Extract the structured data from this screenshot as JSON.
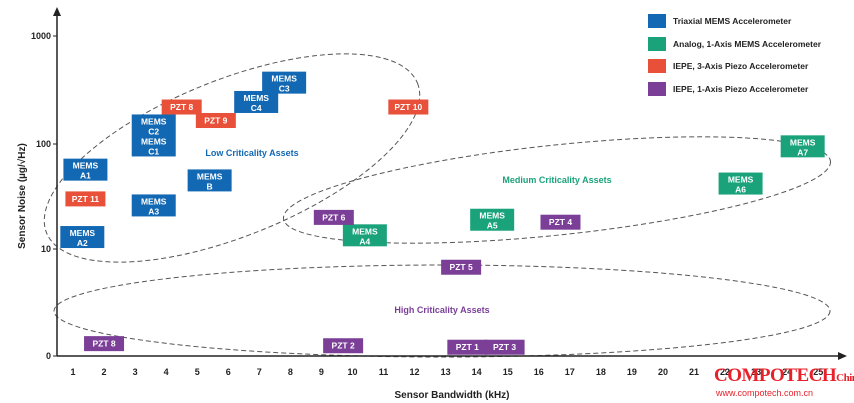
{
  "chart_data": {
    "type": "scatter",
    "xlabel": "Sensor Bandwidth (kHz)",
    "ylabel": "Sensor Noise (µg/√Hz)",
    "x_ticks": [
      "1",
      "2",
      "3",
      "4",
      "5",
      "6",
      "7",
      "8",
      "9",
      "10",
      "11",
      "12",
      "13",
      "14",
      "15",
      "16",
      "17",
      "18",
      "19",
      "20",
      "21",
      "22",
      "23",
      "24",
      "25"
    ],
    "y_ticks": [
      "0",
      "10",
      "100",
      "1000"
    ],
    "y_scale": "log",
    "grid": false,
    "legend_position": "top-right",
    "series": [
      {
        "name": "Triaxial MEMS Accelerometer",
        "color": "#1268b3",
        "points": [
          {
            "label": "MEMS A1",
            "x": 1.4,
            "y": 57
          },
          {
            "label": "MEMS A2",
            "x": 1.3,
            "y": 13
          },
          {
            "label": "MEMS A3",
            "x": 3.6,
            "y": 26
          },
          {
            "label": "MEMS C2 MEMS C1",
            "x": 3.6,
            "y": 120
          },
          {
            "label": "MEMS B",
            "x": 5.4,
            "y": 45
          },
          {
            "label": "MEMS C4",
            "x": 6.9,
            "y": 245
          },
          {
            "label": "MEMS C3",
            "x": 7.8,
            "y": 370
          }
        ]
      },
      {
        "name": "Analog, 1-Axis MEMS Accelerometer",
        "color": "#1aa37a",
        "points": [
          {
            "label": "MEMS A4",
            "x": 10.4,
            "y": 13.5
          },
          {
            "label": "MEMS A5",
            "x": 14.5,
            "y": 19
          },
          {
            "label": "MEMS A6",
            "x": 22.5,
            "y": 42
          },
          {
            "label": "MEMS A7",
            "x": 24.5,
            "y": 95
          }
        ]
      },
      {
        "name": "IEPE, 3-Axis Piezo Accelerometer",
        "color": "#e8503a",
        "points": [
          {
            "label": "PZT 11",
            "x": 1.4,
            "y": 30
          },
          {
            "label": "PZT 8",
            "x": 4.5,
            "y": 220
          },
          {
            "label": "PZT 9",
            "x": 5.6,
            "y": 165
          },
          {
            "label": "PZT 10",
            "x": 11.8,
            "y": 220
          }
        ]
      },
      {
        "name": "IEPE, 1-Axis Piezo Accelerometer",
        "color": "#7b3f98",
        "points": [
          {
            "label": "PZT 8",
            "x": 2.0,
            "y": 0.45
          },
          {
            "label": "PZT 6",
            "x": 9.4,
            "y": 20
          },
          {
            "label": "PZT 2",
            "x": 9.7,
            "y": 0.42
          },
          {
            "label": "PZT 5",
            "x": 13.5,
            "y": 5.5
          },
          {
            "label": "PZT 1",
            "x": 13.7,
            "y": 0.4
          },
          {
            "label": "PZT 3",
            "x": 14.9,
            "y": 0.4
          },
          {
            "label": "PZT 4",
            "x": 16.7,
            "y": 18
          }
        ]
      }
    ],
    "regions": [
      {
        "label": "Low Criticality Assets",
        "color": "#1268b3"
      },
      {
        "label": "Medium Criticality Assets",
        "color": "#1aa37a"
      },
      {
        "label": "High Criticality Assets",
        "color": "#7b3f98"
      }
    ]
  },
  "legend": [
    {
      "label": "Triaxial MEMS Accelerometer",
      "color": "#1268b3"
    },
    {
      "label": "Analog, 1-Axis MEMS Accelerometer",
      "color": "#1aa37a"
    },
    {
      "label": "IEPE, 3-Axis Piezo Accelerometer",
      "color": "#e8503a"
    },
    {
      "label": "IEPE, 1-Axis Piezo Accelerometer",
      "color": "#7b3f98"
    }
  ],
  "watermark": {
    "brand": "COMPOTECH",
    "brand_suffix": "China",
    "url": "www.compotech.com.cn"
  }
}
